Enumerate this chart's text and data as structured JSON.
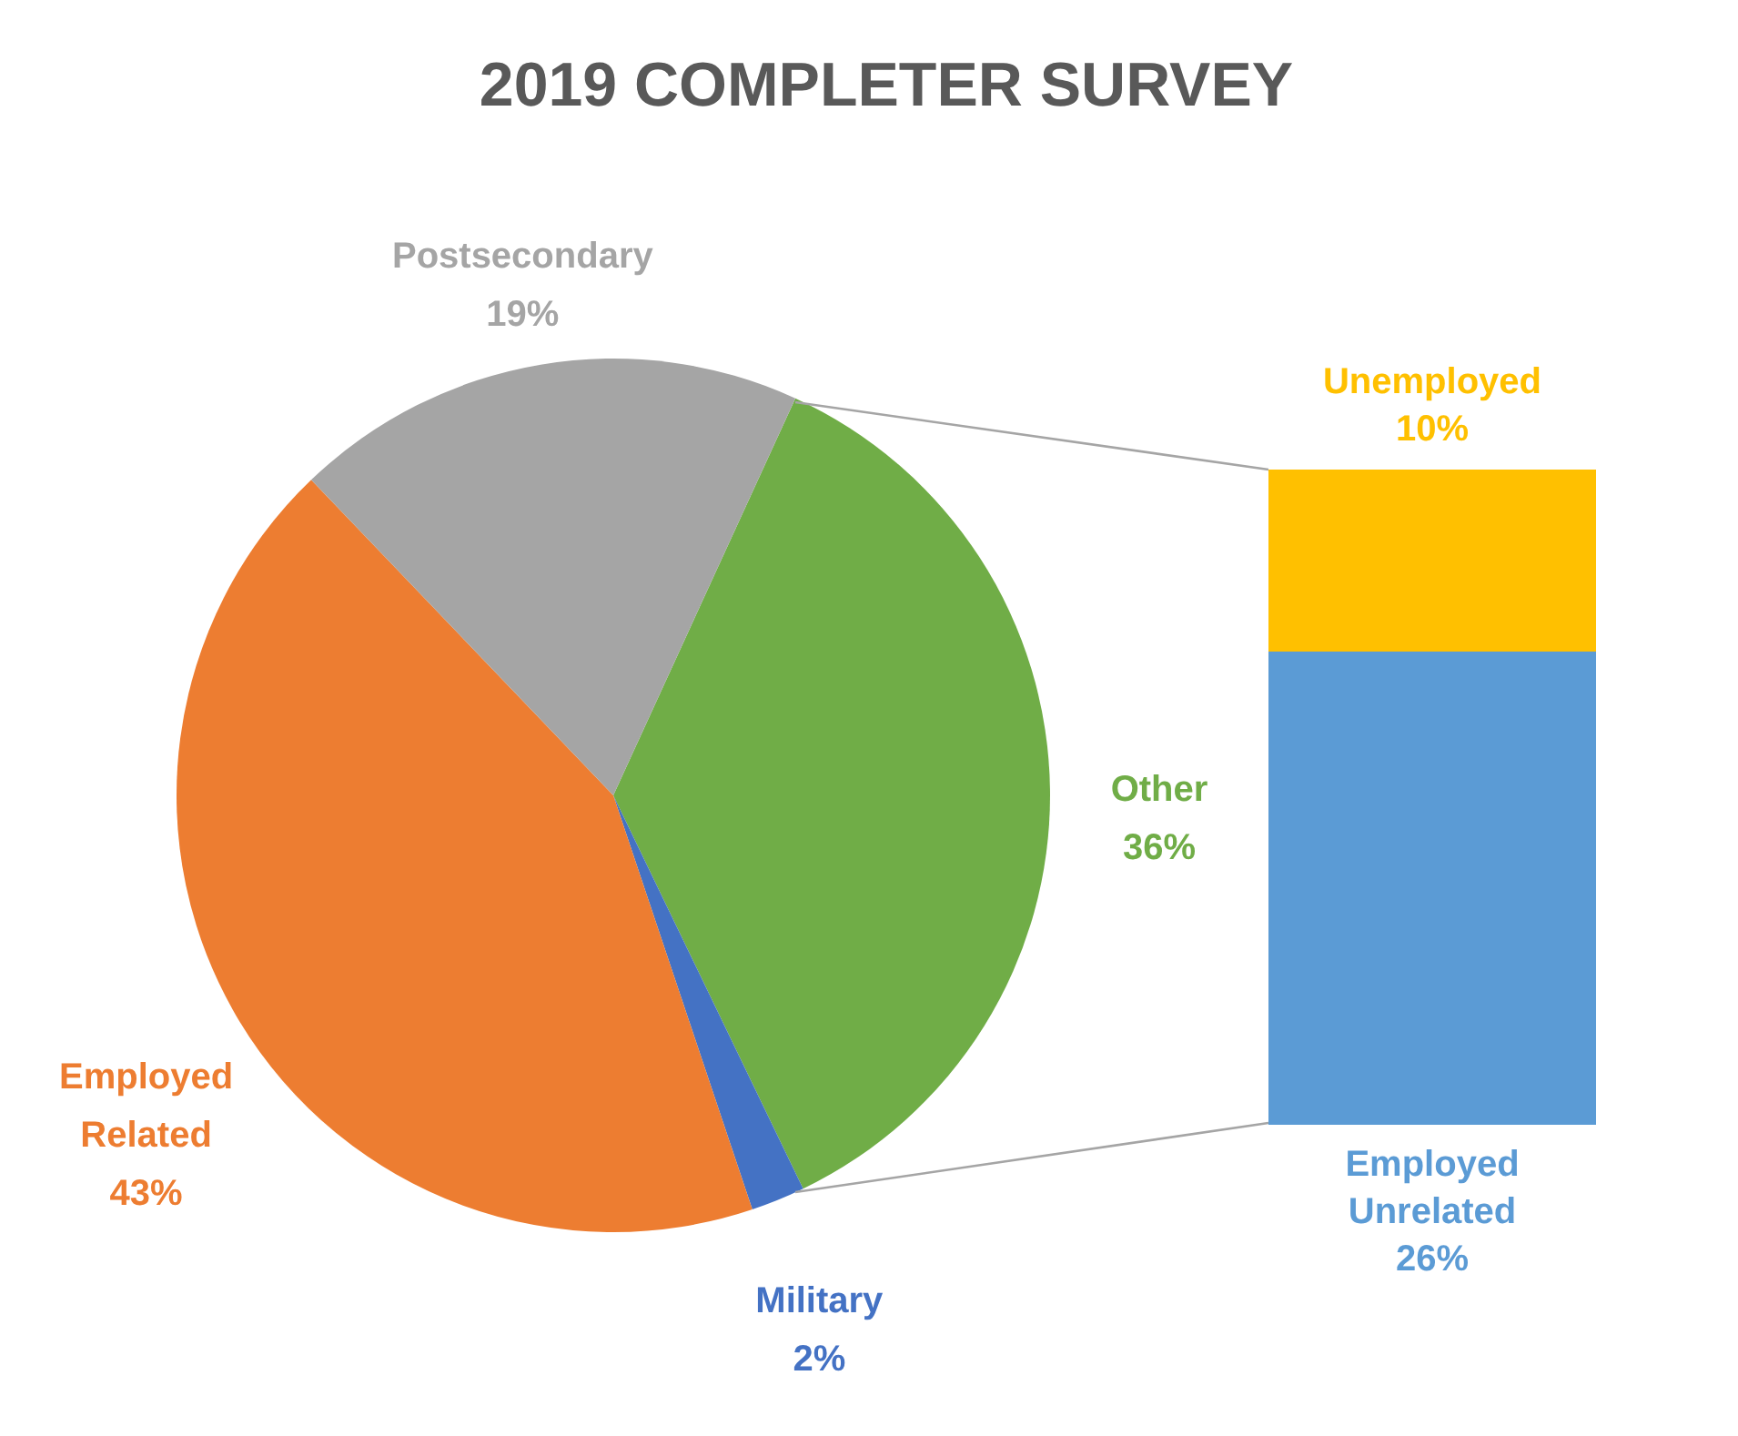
{
  "chart_data": [
    {
      "type": "pie",
      "title": "2019 COMPLETER SURVEY",
      "categories": [
        "Other",
        "Military",
        "Employed Related",
        "Postsecondary"
      ],
      "values": [
        36,
        2,
        43,
        19
      ],
      "colors": [
        "#70ad47",
        "#4472c4",
        "#ed7d31",
        "#a5a5a5"
      ],
      "value_labels": [
        "36%",
        "2%",
        "43%",
        "19%"
      ]
    },
    {
      "type": "bar",
      "stacked": true,
      "categories": [
        null
      ],
      "tick_labels": false,
      "series": [
        {
          "name": "Employed Unrelated",
          "color": "#5b9bd5",
          "values": [
            26
          ],
          "value_labels": [
            "26%"
          ]
        },
        {
          "name": "Unemployed",
          "color": "#ffc000",
          "values": [
            10
          ],
          "value_labels": [
            "10%"
          ]
        }
      ]
    }
  ]
}
